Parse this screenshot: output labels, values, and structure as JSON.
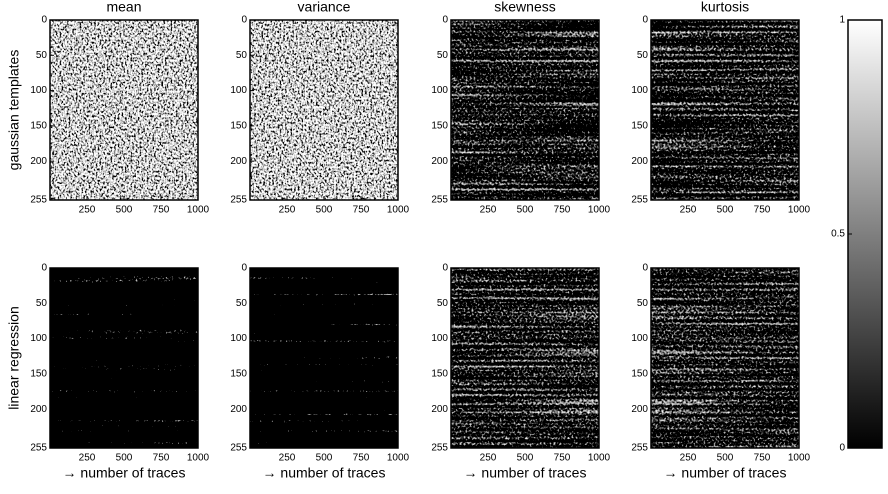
{
  "chart_data": [
    {
      "type": "heatmap",
      "title": "mean",
      "ylabel": "gaussian templates",
      "xlim": [
        0,
        1000
      ],
      "ylim": [
        0,
        255
      ],
      "xticks": [
        250,
        500,
        750,
        1000
      ],
      "yticks": [
        0,
        50,
        100,
        150,
        200,
        255
      ]
    },
    {
      "type": "heatmap",
      "title": "variance",
      "xlim": [
        0,
        1000
      ],
      "ylim": [
        0,
        255
      ],
      "xticks": [
        250,
        500,
        750,
        1000
      ],
      "yticks": [
        0,
        50,
        100,
        150,
        200,
        255
      ]
    },
    {
      "type": "heatmap",
      "title": "skewness",
      "xlim": [
        0,
        1000
      ],
      "ylim": [
        0,
        255
      ],
      "xticks": [
        250,
        500,
        750,
        1000
      ],
      "yticks": [
        0,
        50,
        100,
        150,
        200,
        255
      ]
    },
    {
      "type": "heatmap",
      "title": "kurtosis",
      "xlim": [
        0,
        1000
      ],
      "ylim": [
        0,
        255
      ],
      "xticks": [
        250,
        500,
        750,
        1000
      ],
      "yticks": [
        0,
        50,
        100,
        150,
        200,
        255
      ]
    },
    {
      "type": "heatmap",
      "ylabel": "linear regression",
      "xlabel": "→ number of traces",
      "xlim": [
        0,
        1000
      ],
      "ylim": [
        0,
        255
      ],
      "xticks": [
        250,
        500,
        750,
        1000
      ],
      "yticks": [
        0,
        50,
        100,
        150,
        200,
        255
      ]
    },
    {
      "type": "heatmap",
      "xlabel": "→ number of traces",
      "xlim": [
        0,
        1000
      ],
      "ylim": [
        0,
        255
      ],
      "xticks": [
        250,
        500,
        750,
        1000
      ],
      "yticks": [
        0,
        50,
        100,
        150,
        200,
        255
      ]
    },
    {
      "type": "heatmap",
      "xlabel": "→ number of traces",
      "xlim": [
        0,
        1000
      ],
      "ylim": [
        0,
        255
      ],
      "xticks": [
        250,
        500,
        750,
        1000
      ],
      "yticks": [
        0,
        50,
        100,
        150,
        200,
        255
      ]
    },
    {
      "type": "heatmap",
      "xlabel": "→ number of traces",
      "xlim": [
        0,
        1000
      ],
      "ylim": [
        0,
        255
      ],
      "xticks": [
        250,
        500,
        750,
        1000
      ],
      "yticks": [
        0,
        50,
        100,
        150,
        200,
        255
      ]
    },
    {
      "type": "colorbar",
      "ylim": [
        0,
        1
      ],
      "yticks": [
        0,
        0.5,
        1
      ]
    }
  ]
}
